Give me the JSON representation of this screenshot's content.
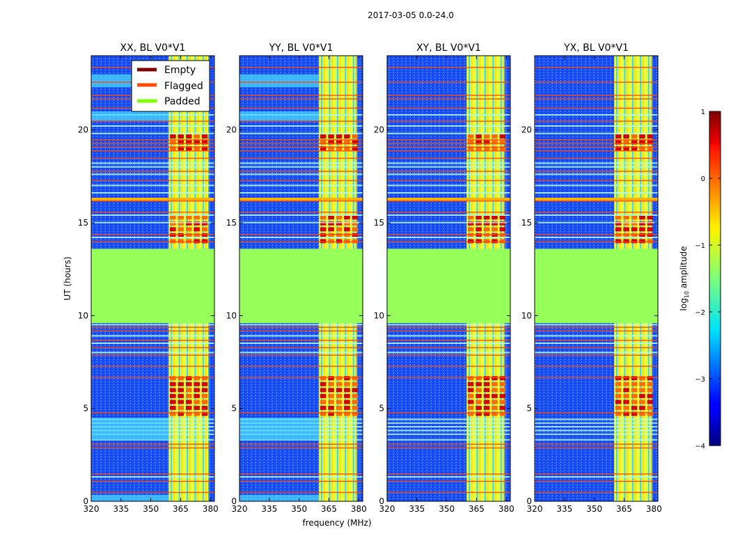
{
  "colors": {
    "padded": "#96ff5a",
    "empty": "#800000",
    "flagged": "#ff4a00",
    "padded_legend": "#7fff00",
    "background_low": "#0a3cff",
    "background_mid": "#1e7cff"
  },
  "chart_data": {
    "type": "heatmap",
    "suptitle": "2017-03-05 0.0-24.0",
    "xlabel": "frequency (MHz)",
    "ylabel": "UT (hours)",
    "xlim": [
      320,
      382
    ],
    "ylim": [
      0,
      24
    ],
    "xticks": [
      "320",
      "335",
      "350",
      "365",
      "380"
    ],
    "xtick_values": [
      320,
      335,
      350,
      365,
      380
    ],
    "yticks": [
      "0",
      "5",
      "10",
      "15",
      "20"
    ],
    "ytick_values": [
      0,
      5,
      10,
      15,
      20
    ],
    "panels": [
      {
        "title": "XX, BL V0*V1",
        "band_start": 359
      },
      {
        "title": "YY, BL V0*V1",
        "band_start": 360
      },
      {
        "title": "XY, BL V0*V1",
        "band_start": 360
      },
      {
        "title": "YX, BL V0*V1",
        "band_start": 360
      }
    ],
    "padded_range": [
      9.6,
      13.6
    ],
    "bright_band_freq": [
      360,
      379
    ],
    "legend": [
      {
        "label": "Empty",
        "color": "#800000"
      },
      {
        "label": "Flagged",
        "color": "#ff4a00"
      },
      {
        "label": "Padded",
        "color": "#7fff00"
      }
    ],
    "colorbar": {
      "label": "log10 amplitude",
      "label_main": "log",
      "label_sub": "10",
      "label_rest": " amplitude",
      "min": -4,
      "max": 1,
      "ticks": [
        "1",
        "0",
        "−1",
        "−2",
        "−3",
        "−4"
      ],
      "tick_values": [
        1,
        0,
        -1,
        -2,
        -3,
        -4
      ]
    }
  }
}
